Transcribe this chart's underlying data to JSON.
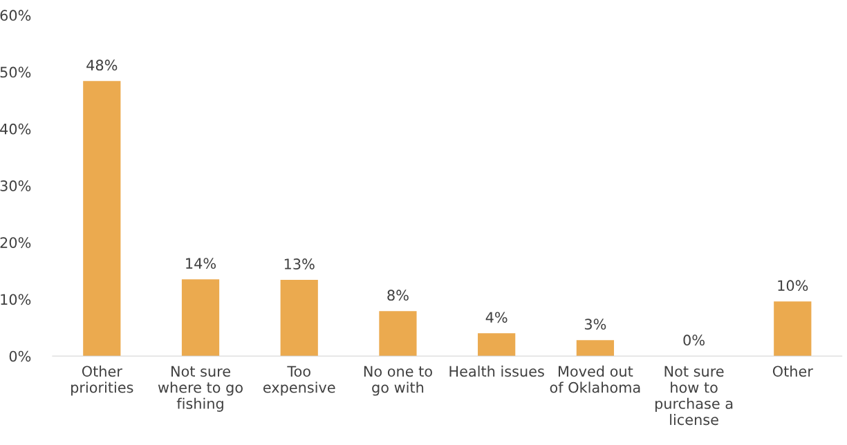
{
  "chart_data": {
    "type": "bar",
    "categories": [
      "Other\npriorities",
      "Not sure\nwhere to go\nfishing",
      "Too\nexpensive",
      "No one to\ngo with",
      "Health issues",
      "Moved out\nof Oklahoma",
      "Not sure\nhow to\npurchase a\nlicense",
      "Other"
    ],
    "values": [
      48.4,
      13.5,
      13.4,
      7.9,
      4.0,
      2.8,
      0.0,
      9.6
    ],
    "value_labels": [
      "48%",
      "14%",
      "13%",
      "8%",
      "4%",
      "3%",
      "0%",
      "10%"
    ],
    "color": "#ebaa4f",
    "ylim": [
      0,
      60
    ],
    "yticks": [
      {
        "value": 0,
        "label": "0%"
      },
      {
        "value": 10,
        "label": "10%"
      },
      {
        "value": 20,
        "label": "20%"
      },
      {
        "value": 30,
        "label": "30%"
      },
      {
        "value": 40,
        "label": "40%"
      },
      {
        "value": 50,
        "label": "50%"
      },
      {
        "value": 60,
        "label": "60%"
      }
    ],
    "grid": false,
    "legend": false
  }
}
